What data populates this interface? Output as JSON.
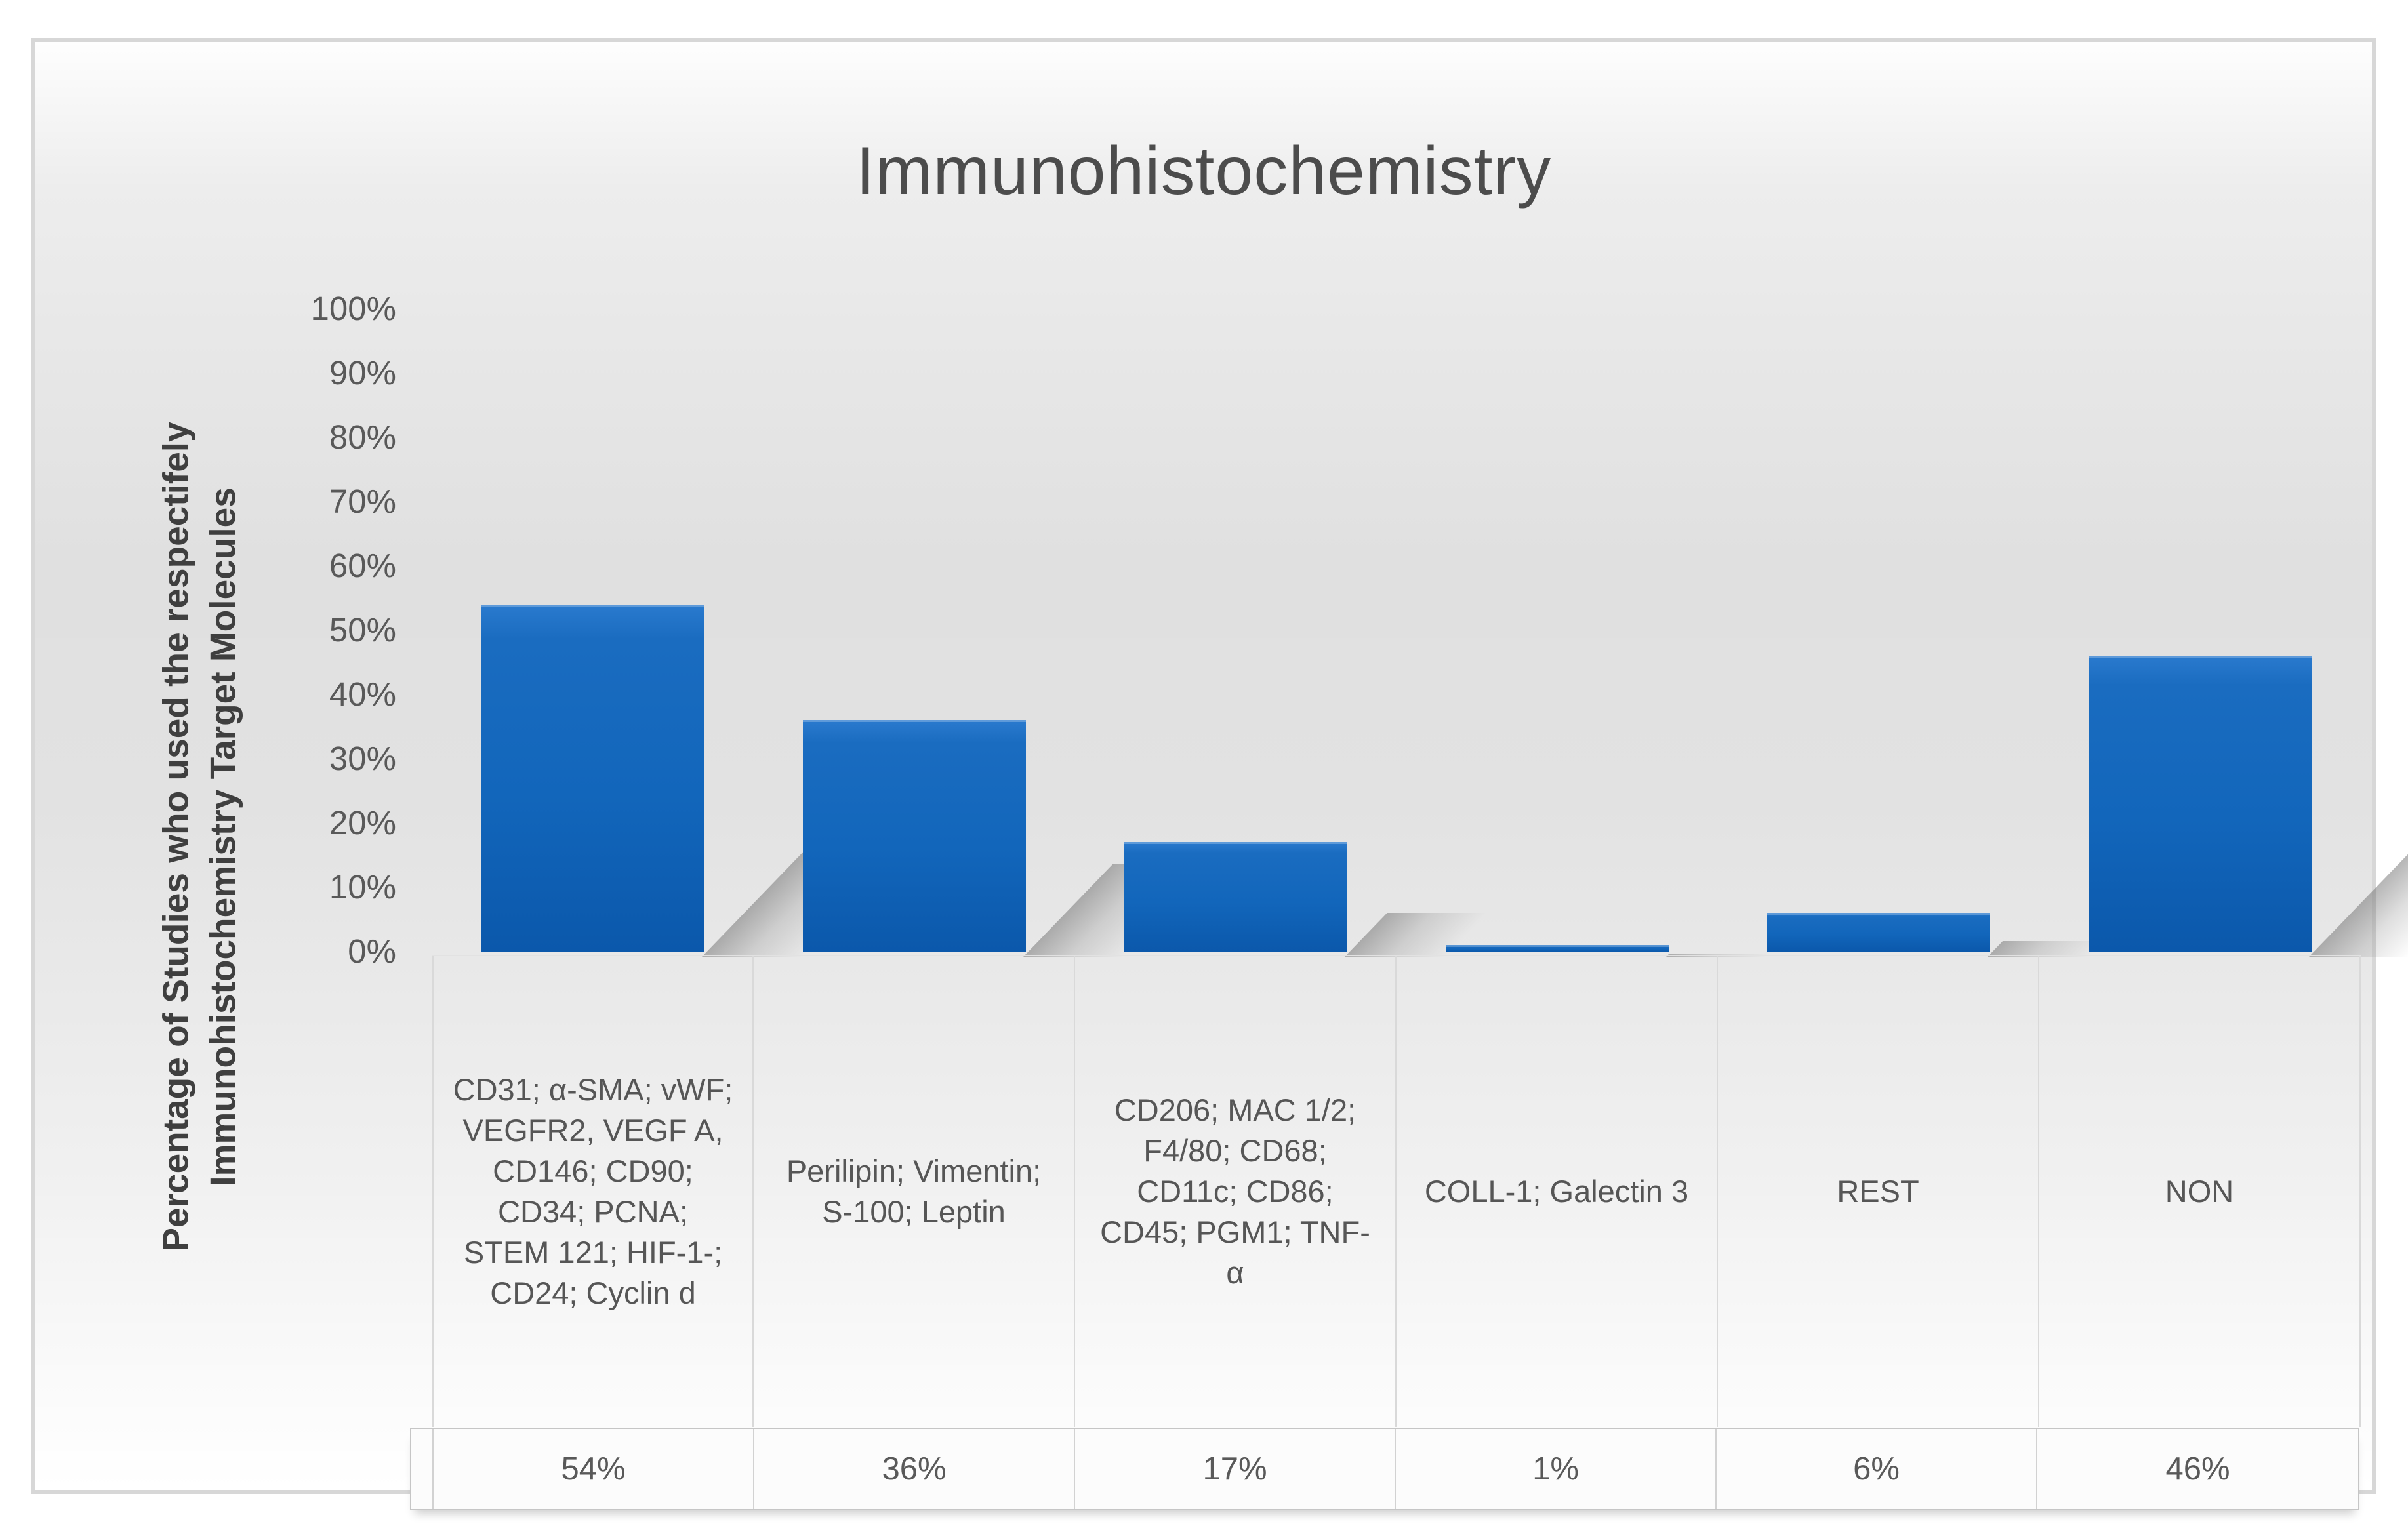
{
  "chart_data": {
    "type": "bar",
    "title": "Immunohistochemistry",
    "ylabel_lines": [
      "Percentage of Studies who used the respectifely",
      "Immunohistochemistry Target Molecules"
    ],
    "categories": [
      "CD31; α-SMA; vWF; VEGFR2, VEGF A, CD146; CD90; CD34; PCNA; STEM 121; HIF-1-; CD24; Cyclin d",
      "Perilipin; Vimentin; S-100; Leptin",
      "CD206; MAC 1/2; F4/80; CD68; CD11c; CD86; CD45; PGM1; TNF-α",
      "COLL-1; Galectin 3",
      "REST",
      "NON"
    ],
    "values": [
      54,
      36,
      17,
      1,
      6,
      46
    ],
    "value_labels": [
      "54%",
      "36%",
      "17%",
      "1%",
      "6%",
      "46%"
    ],
    "y_ticks": [
      "100%",
      "90%",
      "80%",
      "70%",
      "60%",
      "50%",
      "40%",
      "30%",
      "20%",
      "10%",
      "0%"
    ],
    "ylim": [
      0,
      100
    ],
    "grid": false,
    "legend_position": "none",
    "data_table_shown": true,
    "bar_color": "#1266BB",
    "bar_color_dark": "#0B58AB",
    "bar_color_light": "#2A7ACE",
    "shadow_color": "#6E6E6E",
    "text_color": "#595959",
    "title_color": "#4C4C4C",
    "frame_border_color": "#D7D7D7"
  }
}
